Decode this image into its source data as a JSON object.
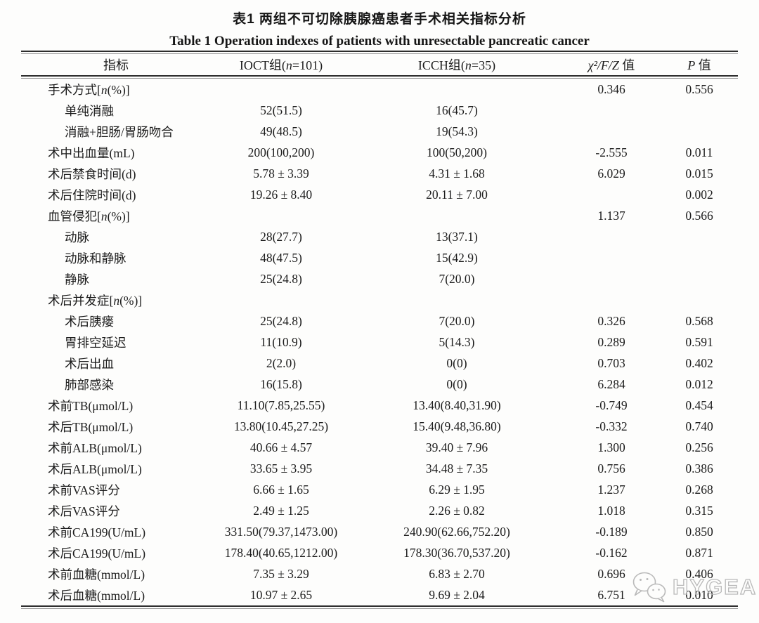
{
  "table": {
    "title_cn": "表1  两组不可切除胰腺癌患者手术相关指标分析",
    "title_en": "Table 1  Operation indexes of patients with unresectable pancreatic cancer",
    "columns": [
      {
        "label": "指标"
      },
      {
        "label": "IOCT组(n=101)"
      },
      {
        "label": "ICCH组(n=35)"
      },
      {
        "label": "χ²/F/Z 值",
        "stat": true
      },
      {
        "label": "P 值",
        "stat": true
      }
    ],
    "rows": [
      {
        "label": "手术方式[n(%)]",
        "indent": 0,
        "ioct": "",
        "icch": "",
        "stat": "0.346",
        "p": "0.556"
      },
      {
        "label": "单纯消融",
        "indent": 1,
        "ioct": "52(51.5)",
        "icch": "16(45.7)",
        "stat": "",
        "p": ""
      },
      {
        "label": "消融+胆肠/胃肠吻合",
        "indent": 1,
        "ioct": "49(48.5)",
        "icch": "19(54.3)",
        "stat": "",
        "p": ""
      },
      {
        "label": "术中出血量(mL)",
        "indent": 0,
        "ioct": "200(100,200)",
        "icch": "100(50,200)",
        "stat": "-2.555",
        "p": "0.011"
      },
      {
        "label": "术后禁食时间(d)",
        "indent": 0,
        "ioct": "5.78 ± 3.39",
        "icch": "4.31 ± 1.68",
        "stat": "6.029",
        "p": "0.015"
      },
      {
        "label": "术后住院时间(d)",
        "indent": 0,
        "ioct": "19.26 ± 8.40",
        "icch": "20.11 ± 7.00",
        "stat": "",
        "p": "0.002"
      },
      {
        "label": "血管侵犯[n(%)]",
        "indent": 0,
        "ioct": "",
        "icch": "",
        "stat": "1.137",
        "p": "0.566"
      },
      {
        "label": "动脉",
        "indent": 1,
        "ioct": "28(27.7)",
        "icch": "13(37.1)",
        "stat": "",
        "p": ""
      },
      {
        "label": "动脉和静脉",
        "indent": 1,
        "ioct": "48(47.5)",
        "icch": "15(42.9)",
        "stat": "",
        "p": ""
      },
      {
        "label": "静脉",
        "indent": 1,
        "ioct": "25(24.8)",
        "icch": "7(20.0)",
        "stat": "",
        "p": ""
      },
      {
        "label": "术后并发症[n(%)]",
        "indent": 0,
        "ioct": "",
        "icch": "",
        "stat": "",
        "p": ""
      },
      {
        "label": "术后胰瘘",
        "indent": 1,
        "ioct": "25(24.8)",
        "icch": "7(20.0)",
        "stat": "0.326",
        "p": "0.568"
      },
      {
        "label": "胃排空延迟",
        "indent": 1,
        "ioct": "11(10.9)",
        "icch": "5(14.3)",
        "stat": "0.289",
        "p": "0.591"
      },
      {
        "label": "术后出血",
        "indent": 1,
        "ioct": "2(2.0)",
        "icch": "0(0)",
        "stat": "0.703",
        "p": "0.402"
      },
      {
        "label": "肺部感染",
        "indent": 1,
        "ioct": "16(15.8)",
        "icch": "0(0)",
        "stat": "6.284",
        "p": "0.012"
      },
      {
        "label": "术前TB(μmol/L)",
        "indent": 0,
        "ioct": "11.10(7.85,25.55)",
        "icch": "13.40(8.40,31.90)",
        "stat": "-0.749",
        "p": "0.454"
      },
      {
        "label": "术后TB(μmol/L)",
        "indent": 0,
        "ioct": "13.80(10.45,27.25)",
        "icch": "15.40(9.48,36.80)",
        "stat": "-0.332",
        "p": "0.740"
      },
      {
        "label": "术前ALB(μmol/L)",
        "indent": 0,
        "ioct": "40.66 ± 4.57",
        "icch": "39.40 ± 7.96",
        "stat": "1.300",
        "p": "0.256"
      },
      {
        "label": "术后ALB(μmol/L)",
        "indent": 0,
        "ioct": "33.65 ± 3.95",
        "icch": "34.48 ± 7.35",
        "stat": "0.756",
        "p": "0.386"
      },
      {
        "label": "术前VAS评分",
        "indent": 0,
        "ioct": "6.66 ± 1.65",
        "icch": "6.29 ± 1.95",
        "stat": "1.237",
        "p": "0.268"
      },
      {
        "label": "术后VAS评分",
        "indent": 0,
        "ioct": "2.49 ± 1.25",
        "icch": "2.26 ± 0.82",
        "stat": "1.018",
        "p": "0.315"
      },
      {
        "label": "术前CA199(U/mL)",
        "indent": 0,
        "ioct": "331.50(79.37,1473.00)",
        "icch": "240.90(62.66,752.20)",
        "stat": "-0.189",
        "p": "0.850"
      },
      {
        "label": "术后CA199(U/mL)",
        "indent": 0,
        "ioct": "178.40(40.65,1212.00)",
        "icch": "178.30(36.70,537.20)",
        "stat": "-0.162",
        "p": "0.871"
      },
      {
        "label": "术前血糖(mmol/L)",
        "indent": 0,
        "ioct": "7.35 ± 3.29",
        "icch": "6.83 ± 2.70",
        "stat": "0.696",
        "p": "0.406"
      },
      {
        "label": "术后血糖(mmol/L)",
        "indent": 0,
        "ioct": "10.97 ± 2.65",
        "icch": "9.69 ± 2.04",
        "stat": "6.751",
        "p": "0.010"
      }
    ]
  },
  "watermark": {
    "brand": "HYGEA",
    "icon": "wechat-icon",
    "color": "#b9b9b9"
  }
}
